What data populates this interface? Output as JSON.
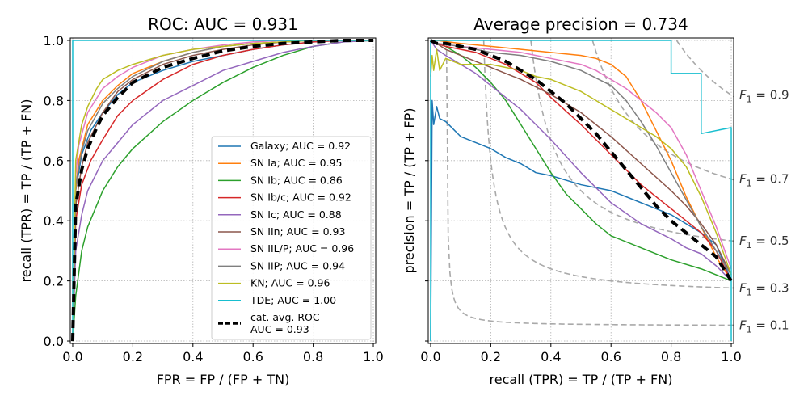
{
  "chart_data": [
    {
      "type": "line",
      "title": "ROC: AUC = 0.931",
      "xlabel": "FPR = FP / (FP + TN)",
      "ylabel": "recall (TPR) = TP / (TP + FN)",
      "xlim": [
        0,
        1
      ],
      "ylim": [
        0,
        1
      ],
      "ticks": [
        "0.0",
        "0.2",
        "0.4",
        "0.6",
        "0.8",
        "1.0"
      ],
      "grid": true,
      "legend_position": "lower-right",
      "series": [
        {
          "name": "Galaxy; AUC = 0.92",
          "color": "#1f77b4",
          "width": 1.5,
          "dash": "",
          "x": [
            0,
            0.01,
            0.03,
            0.06,
            0.1,
            0.15,
            0.2,
            0.3,
            0.4,
            0.5,
            0.6,
            0.7,
            0.8,
            0.9,
            1.0
          ],
          "y": [
            0,
            0.5,
            0.62,
            0.7,
            0.76,
            0.82,
            0.86,
            0.9,
            0.93,
            0.95,
            0.97,
            0.985,
            0.995,
            1.0,
            1.0
          ]
        },
        {
          "name": "SN Ia; AUC = 0.95",
          "color": "#ff7f0e",
          "width": 1.5,
          "dash": "",
          "x": [
            0,
            0.01,
            0.02,
            0.05,
            0.1,
            0.15,
            0.2,
            0.3,
            0.4,
            0.5,
            0.6,
            0.7,
            0.8,
            1.0
          ],
          "y": [
            0,
            0.5,
            0.6,
            0.72,
            0.8,
            0.85,
            0.89,
            0.93,
            0.96,
            0.98,
            0.99,
            0.995,
            1.0,
            1.0
          ]
        },
        {
          "name": "SN Ib; AUC = 0.86",
          "color": "#2ca02c",
          "width": 1.5,
          "dash": "",
          "x": [
            0,
            0.01,
            0.03,
            0.05,
            0.1,
            0.15,
            0.2,
            0.3,
            0.4,
            0.5,
            0.6,
            0.7,
            0.8,
            0.9,
            1.0
          ],
          "y": [
            0,
            0.15,
            0.3,
            0.38,
            0.5,
            0.58,
            0.64,
            0.73,
            0.8,
            0.86,
            0.91,
            0.95,
            0.98,
            0.995,
            1.0
          ]
        },
        {
          "name": "SN Ib/c; AUC = 0.92",
          "color": "#d62728",
          "width": 1.5,
          "dash": "",
          "x": [
            0,
            0.01,
            0.03,
            0.06,
            0.1,
            0.15,
            0.2,
            0.3,
            0.4,
            0.5,
            0.6,
            0.7,
            0.8,
            0.9,
            1.0
          ],
          "y": [
            0,
            0.4,
            0.52,
            0.6,
            0.67,
            0.75,
            0.8,
            0.87,
            0.92,
            0.95,
            0.97,
            0.985,
            0.995,
            1.0,
            1.0
          ]
        },
        {
          "name": "SN Ic; AUC = 0.88",
          "color": "#9467bd",
          "width": 1.5,
          "dash": "",
          "x": [
            0,
            0.01,
            0.03,
            0.05,
            0.1,
            0.15,
            0.2,
            0.3,
            0.4,
            0.5,
            0.6,
            0.7,
            0.8,
            0.9,
            1.0
          ],
          "y": [
            0,
            0.3,
            0.42,
            0.5,
            0.6,
            0.66,
            0.72,
            0.8,
            0.85,
            0.9,
            0.93,
            0.96,
            0.98,
            0.995,
            1.0
          ]
        },
        {
          "name": "SN IIn; AUC = 0.93",
          "color": "#8c564b",
          "width": 1.5,
          "dash": "",
          "x": [
            0,
            0.01,
            0.03,
            0.05,
            0.1,
            0.15,
            0.2,
            0.3,
            0.4,
            0.5,
            0.6,
            0.7,
            0.8,
            1.0
          ],
          "y": [
            0,
            0.45,
            0.58,
            0.66,
            0.76,
            0.83,
            0.87,
            0.92,
            0.95,
            0.97,
            0.985,
            0.995,
            1.0,
            1.0
          ]
        },
        {
          "name": "SN IIL/P; AUC = 0.96",
          "color": "#e377c2",
          "width": 1.5,
          "dash": "",
          "x": [
            0,
            0.01,
            0.02,
            0.05,
            0.1,
            0.15,
            0.2,
            0.3,
            0.4,
            0.5,
            0.6,
            0.7,
            0.8,
            1.0
          ],
          "y": [
            0,
            0.55,
            0.65,
            0.76,
            0.84,
            0.88,
            0.91,
            0.95,
            0.97,
            0.985,
            0.995,
            1.0,
            1.0,
            1.0
          ]
        },
        {
          "name": "SN IIP; AUC = 0.94",
          "color": "#7f7f7f",
          "width": 1.5,
          "dash": "",
          "x": [
            0,
            0.01,
            0.03,
            0.05,
            0.1,
            0.15,
            0.2,
            0.3,
            0.4,
            0.5,
            0.6,
            0.7,
            0.8,
            1.0
          ],
          "y": [
            0,
            0.52,
            0.63,
            0.7,
            0.79,
            0.84,
            0.88,
            0.93,
            0.96,
            0.98,
            0.99,
            0.995,
            1.0,
            1.0
          ]
        },
        {
          "name": "KN; AUC = 0.96",
          "color": "#bcbd22",
          "width": 1.5,
          "dash": "",
          "x": [
            0,
            0.01,
            0.03,
            0.05,
            0.08,
            0.1,
            0.15,
            0.2,
            0.3,
            0.4,
            0.5,
            0.6,
            0.7,
            0.8,
            1.0
          ],
          "y": [
            0,
            0.6,
            0.72,
            0.78,
            0.84,
            0.87,
            0.9,
            0.92,
            0.95,
            0.97,
            0.98,
            0.99,
            0.995,
            1.0,
            1.0
          ]
        },
        {
          "name": "TDE; AUC = 1.00",
          "color": "#17becf",
          "width": 1.5,
          "dash": "",
          "x": [
            0,
            0,
            1.0
          ],
          "y": [
            0,
            1.0,
            1.0
          ]
        },
        {
          "name": "cat. avg. ROC\nAUC = 0.93",
          "color": "#000000",
          "width": 4,
          "dash": "10,6",
          "x": [
            0,
            0.01,
            0.03,
            0.05,
            0.08,
            0.1,
            0.15,
            0.2,
            0.3,
            0.4,
            0.5,
            0.6,
            0.7,
            0.8,
            0.9,
            1.0
          ],
          "y": [
            0,
            0.45,
            0.57,
            0.64,
            0.71,
            0.75,
            0.81,
            0.86,
            0.91,
            0.94,
            0.965,
            0.98,
            0.99,
            0.995,
            1.0,
            1.0
          ]
        }
      ]
    },
    {
      "type": "line",
      "title": "Average precision = 0.734",
      "xlabel": "recall (TPR) = TP / (TP + FN)",
      "ylabel": "precision = TP / (TP + FP)",
      "xlim": [
        0,
        1
      ],
      "ylim": [
        0,
        1
      ],
      "x_ticks": [
        "0.0",
        "0.2",
        "0.4",
        "0.6",
        "0.8",
        "1.0"
      ],
      "y_tick_labels": "hidden",
      "grid": true,
      "iso_f1_curves": [
        {
          "f1": 0.1,
          "label": "F_1 = 0.1"
        },
        {
          "f1": 0.3,
          "label": "F_1 = 0.3"
        },
        {
          "f1": 0.5,
          "label": "F_1 = 0.5"
        },
        {
          "f1": 0.7,
          "label": "F_1 = 0.7"
        },
        {
          "f1": 0.9,
          "label": "F_1 = 0.9"
        }
      ],
      "f1_prefix": "F",
      "f1_subscript": "1",
      "series": [
        {
          "color": "#1f77b4",
          "width": 1.5,
          "dash": "",
          "x": [
            0,
            0.005,
            0.01,
            0.02,
            0.03,
            0.05,
            0.08,
            0.1,
            0.15,
            0.2,
            0.25,
            0.3,
            0.35,
            0.4,
            0.5,
            0.6,
            0.7,
            0.8,
            0.9,
            0.95,
            0.98,
            1.0
          ],
          "y": [
            0,
            0.8,
            0.72,
            0.78,
            0.74,
            0.73,
            0.7,
            0.68,
            0.66,
            0.64,
            0.61,
            0.59,
            0.56,
            0.55,
            0.52,
            0.5,
            0.46,
            0.42,
            0.36,
            0.32,
            0.25,
            0.2
          ]
        },
        {
          "color": "#ff7f0e",
          "width": 1.5,
          "dash": "",
          "x": [
            0,
            0.02,
            0.1,
            0.2,
            0.3,
            0.4,
            0.5,
            0.55,
            0.6,
            0.65,
            0.7,
            0.75,
            0.8,
            0.85,
            0.9,
            0.95,
            1.0
          ],
          "y": [
            1.0,
            1.0,
            0.99,
            0.98,
            0.97,
            0.96,
            0.95,
            0.94,
            0.92,
            0.88,
            0.8,
            0.7,
            0.6,
            0.48,
            0.38,
            0.28,
            0.2
          ]
        },
        {
          "color": "#2ca02c",
          "width": 1.5,
          "dash": "",
          "x": [
            0,
            0.02,
            0.05,
            0.1,
            0.15,
            0.2,
            0.25,
            0.3,
            0.35,
            0.4,
            0.45,
            0.5,
            0.55,
            0.6,
            0.7,
            0.8,
            0.9,
            1.0
          ],
          "y": [
            1.0,
            0.99,
            0.98,
            0.95,
            0.91,
            0.86,
            0.8,
            0.72,
            0.64,
            0.56,
            0.49,
            0.44,
            0.39,
            0.35,
            0.31,
            0.27,
            0.24,
            0.2
          ]
        },
        {
          "color": "#d62728",
          "width": 1.5,
          "dash": "",
          "x": [
            0,
            0.02,
            0.05,
            0.1,
            0.15,
            0.2,
            0.25,
            0.3,
            0.35,
            0.4,
            0.5,
            0.6,
            0.7,
            0.8,
            0.85,
            0.9,
            0.95,
            1.0
          ],
          "y": [
            1.0,
            0.99,
            0.98,
            0.97,
            0.96,
            0.94,
            0.92,
            0.89,
            0.86,
            0.81,
            0.72,
            0.62,
            0.52,
            0.44,
            0.4,
            0.36,
            0.3,
            0.2
          ]
        },
        {
          "color": "#9467bd",
          "width": 1.5,
          "dash": "",
          "x": [
            0,
            0.02,
            0.05,
            0.1,
            0.15,
            0.2,
            0.25,
            0.3,
            0.35,
            0.4,
            0.5,
            0.6,
            0.7,
            0.8,
            0.85,
            0.9,
            0.95,
            1.0
          ],
          "y": [
            1.0,
            0.97,
            0.95,
            0.92,
            0.89,
            0.85,
            0.81,
            0.77,
            0.72,
            0.67,
            0.56,
            0.46,
            0.39,
            0.34,
            0.31,
            0.29,
            0.25,
            0.2
          ]
        },
        {
          "color": "#8c564b",
          "width": 1.5,
          "dash": "",
          "x": [
            0,
            0.02,
            0.05,
            0.1,
            0.15,
            0.2,
            0.25,
            0.3,
            0.4,
            0.5,
            0.6,
            0.7,
            0.8,
            0.85,
            0.9,
            0.95,
            1.0
          ],
          "y": [
            1.0,
            0.99,
            0.97,
            0.95,
            0.93,
            0.91,
            0.89,
            0.87,
            0.82,
            0.76,
            0.68,
            0.59,
            0.5,
            0.45,
            0.39,
            0.32,
            0.22
          ]
        },
        {
          "color": "#e377c2",
          "width": 1.5,
          "dash": "",
          "x": [
            0,
            0.02,
            0.1,
            0.2,
            0.3,
            0.4,
            0.5,
            0.55,
            0.6,
            0.65,
            0.7,
            0.75,
            0.8,
            0.85,
            0.9,
            0.95,
            1.0
          ],
          "y": [
            1.0,
            0.99,
            0.98,
            0.97,
            0.96,
            0.94,
            0.92,
            0.9,
            0.87,
            0.84,
            0.8,
            0.76,
            0.71,
            0.62,
            0.5,
            0.38,
            0.24
          ]
        },
        {
          "color": "#7f7f7f",
          "width": 1.5,
          "dash": "",
          "x": [
            0,
            0.02,
            0.1,
            0.2,
            0.3,
            0.4,
            0.5,
            0.6,
            0.65,
            0.7,
            0.75,
            0.8,
            0.85,
            0.9,
            0.95,
            1.0
          ],
          "y": [
            1.0,
            0.99,
            0.98,
            0.96,
            0.95,
            0.93,
            0.9,
            0.85,
            0.8,
            0.73,
            0.65,
            0.56,
            0.47,
            0.38,
            0.3,
            0.22
          ]
        },
        {
          "color": "#bcbd22",
          "width": 1.5,
          "dash": "",
          "x": [
            0,
            0.005,
            0.01,
            0.02,
            0.03,
            0.05,
            0.1,
            0.15,
            0.2,
            0.25,
            0.3,
            0.35,
            0.4,
            0.5,
            0.6,
            0.7,
            0.75,
            0.8,
            0.85,
            0.9,
            0.95,
            1.0
          ],
          "y": [
            0.88,
            0.95,
            0.9,
            0.97,
            0.9,
            0.94,
            0.92,
            0.92,
            0.92,
            0.91,
            0.9,
            0.88,
            0.87,
            0.83,
            0.77,
            0.71,
            0.68,
            0.64,
            0.58,
            0.48,
            0.36,
            0.22
          ]
        },
        {
          "color": "#17becf",
          "width": 1.5,
          "dash": "",
          "x": [
            0,
            0,
            0.8,
            0.8,
            0.9,
            0.9,
            1.0,
            1.0
          ],
          "y": [
            0,
            1.0,
            1.0,
            0.89,
            0.89,
            0.69,
            0.71,
            0
          ]
        },
        {
          "color": "#000000",
          "width": 4,
          "dash": "10,6",
          "x": [
            0,
            0.02,
            0.05,
            0.1,
            0.15,
            0.2,
            0.25,
            0.3,
            0.35,
            0.4,
            0.45,
            0.5,
            0.55,
            0.6,
            0.65,
            0.7,
            0.75,
            0.8,
            0.85,
            0.9,
            0.95,
            1.0
          ],
          "y": [
            1.0,
            0.99,
            0.99,
            0.98,
            0.97,
            0.95,
            0.93,
            0.9,
            0.87,
            0.83,
            0.79,
            0.74,
            0.69,
            0.63,
            0.57,
            0.51,
            0.45,
            0.4,
            0.36,
            0.32,
            0.28,
            0.2
          ]
        }
      ]
    }
  ]
}
